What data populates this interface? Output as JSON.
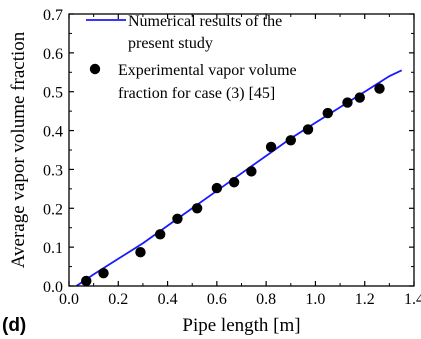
{
  "panel_label": "(d)",
  "chart_data": {
    "type": "line",
    "title": "",
    "xlabel": "Pipe length [m]",
    "ylabel": "Average vapor volume fraction",
    "xlim": [
      0.0,
      1.4
    ],
    "ylim": [
      0.0,
      0.7
    ],
    "xticks": [
      "0.0",
      "0.2",
      "0.4",
      "0.6",
      "0.8",
      "1.0",
      "1.2",
      "1.4"
    ],
    "yticks": [
      "0.0",
      "0.1",
      "0.2",
      "0.3",
      "0.4",
      "0.5",
      "0.6",
      "0.7"
    ],
    "grid": false,
    "legend_position": "top-left",
    "series": [
      {
        "name": "Numerical results of the present study",
        "kind": "line",
        "color": "#1a1aff",
        "x": [
          0.03,
          0.1,
          0.2,
          0.3,
          0.4,
          0.5,
          0.6,
          0.7,
          0.8,
          0.9,
          1.0,
          1.1,
          1.2,
          1.3,
          1.35
        ],
        "y": [
          0.0,
          0.03,
          0.07,
          0.11,
          0.155,
          0.2,
          0.245,
          0.29,
          0.335,
          0.38,
          0.42,
          0.46,
          0.5,
          0.54,
          0.555
        ]
      },
      {
        "name": "Experimental vapor volume fraction for case (3) [45]",
        "kind": "scatter",
        "color": "#000000",
        "x": [
          0.07,
          0.14,
          0.29,
          0.37,
          0.44,
          0.52,
          0.6,
          0.67,
          0.74,
          0.82,
          0.9,
          0.97,
          1.05,
          1.13,
          1.18,
          1.26
        ],
        "y": [
          0.013,
          0.033,
          0.087,
          0.133,
          0.173,
          0.2,
          0.252,
          0.267,
          0.295,
          0.358,
          0.375,
          0.403,
          0.445,
          0.472,
          0.485,
          0.508
        ]
      }
    ]
  }
}
